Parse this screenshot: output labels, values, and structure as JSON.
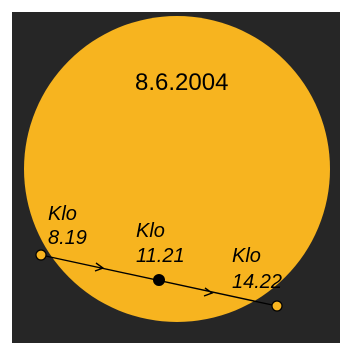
{
  "date": "8.6.2004",
  "colors": {
    "background": "#262626",
    "sun": "#F7B41F",
    "edge_marker": "#F7B41F",
    "center_marker": "#000000",
    "path": "#000000"
  },
  "markers": [
    {
      "line1": "Klo",
      "line2": "8.19"
    },
    {
      "line1": "Klo",
      "line2": "11.21"
    },
    {
      "line1": "Klo",
      "line2": "14.22"
    }
  ]
}
